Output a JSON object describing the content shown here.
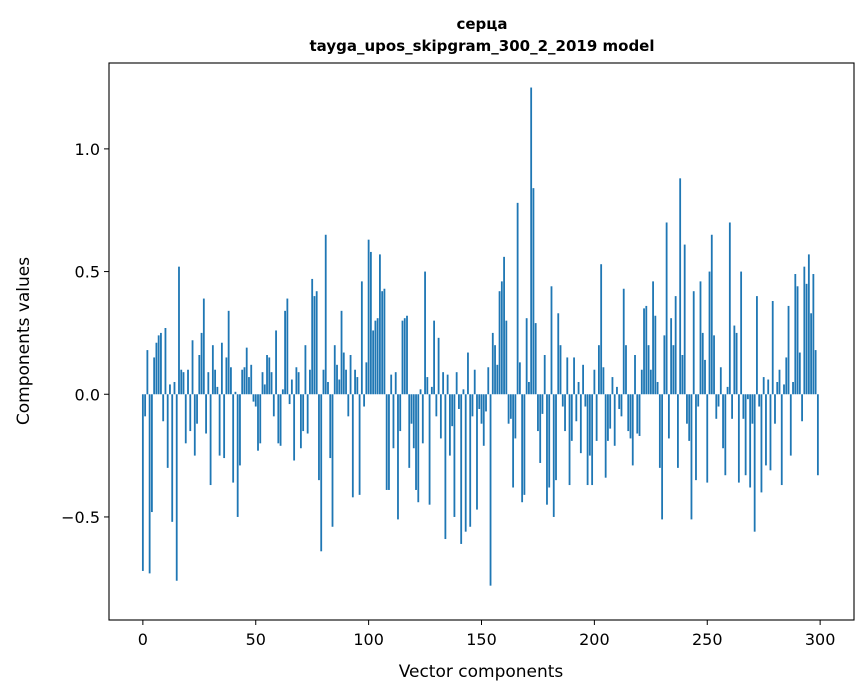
{
  "chart_data": {
    "type": "bar",
    "title_line1": "серца",
    "title_line2": "tayga_upos_skipgram_300_2_2019 model",
    "xlabel": "Vector components",
    "ylabel": "Components values",
    "xlim": [
      -15,
      315
    ],
    "ylim": [
      -0.92,
      1.35
    ],
    "x_ticks": [
      0,
      50,
      100,
      150,
      200,
      250,
      300
    ],
    "y_ticks": [
      -0.5,
      0.0,
      0.5,
      1.0
    ],
    "y_tick_labels": [
      "−0.5",
      "0.0",
      "0.5",
      "1.0"
    ],
    "bar_color": "#1f77b4",
    "grid": false,
    "values": [
      -0.72,
      -0.09,
      0.18,
      -0.73,
      -0.48,
      0.15,
      0.21,
      0.24,
      0.25,
      -0.11,
      0.27,
      -0.3,
      0.04,
      -0.52,
      0.05,
      -0.76,
      0.52,
      0.1,
      0.09,
      -0.2,
      0.1,
      -0.15,
      0.22,
      -0.25,
      -0.12,
      0.16,
      0.25,
      0.39,
      -0.16,
      0.09,
      -0.37,
      0.2,
      0.1,
      0.03,
      -0.25,
      0.21,
      -0.26,
      0.15,
      0.34,
      0.11,
      -0.36,
      0.01,
      -0.5,
      -0.29,
      0.1,
      0.11,
      0.19,
      0.07,
      0.12,
      -0.03,
      -0.05,
      -0.23,
      -0.2,
      0.09,
      0.04,
      0.16,
      0.15,
      0.09,
      -0.09,
      0.26,
      -0.2,
      -0.21,
      0.02,
      0.34,
      0.39,
      -0.04,
      0.06,
      -0.27,
      0.11,
      0.09,
      -0.22,
      -0.15,
      0.2,
      -0.16,
      0.1,
      0.47,
      0.4,
      0.42,
      -0.35,
      -0.64,
      0.1,
      0.65,
      0.05,
      -0.26,
      -0.54,
      0.2,
      0.12,
      0.06,
      0.34,
      0.17,
      0.1,
      -0.09,
      0.16,
      -0.42,
      0.1,
      0.07,
      -0.41,
      0.46,
      -0.05,
      0.13,
      0.63,
      0.58,
      0.26,
      0.3,
      0.31,
      0.57,
      0.42,
      0.43,
      -0.39,
      -0.39,
      0.08,
      -0.22,
      0.09,
      -0.51,
      -0.15,
      0.3,
      0.31,
      0.32,
      -0.3,
      -0.12,
      -0.22,
      -0.39,
      -0.44,
      0.02,
      -0.2,
      0.5,
      0.07,
      -0.45,
      0.03,
      0.3,
      -0.09,
      0.23,
      -0.18,
      0.09,
      -0.59,
      0.08,
      -0.25,
      -0.13,
      -0.5,
      0.09,
      -0.06,
      -0.61,
      0.02,
      -0.56,
      0.17,
      -0.54,
      -0.09,
      0.1,
      -0.47,
      -0.06,
      -0.12,
      -0.21,
      -0.07,
      0.11,
      -0.78,
      0.25,
      0.2,
      0.12,
      0.42,
      0.46,
      0.56,
      0.3,
      -0.12,
      -0.1,
      -0.38,
      -0.18,
      0.78,
      0.13,
      -0.44,
      -0.41,
      0.31,
      0.05,
      1.25,
      0.84,
      0.29,
      -0.15,
      -0.28,
      -0.08,
      0.16,
      -0.45,
      -0.38,
      0.44,
      -0.5,
      -0.35,
      0.33,
      0.2,
      -0.05,
      -0.15,
      0.15,
      -0.37,
      -0.19,
      0.15,
      -0.11,
      0.05,
      -0.24,
      0.12,
      -0.05,
      -0.37,
      -0.25,
      -0.37,
      0.1,
      -0.19,
      0.2,
      0.53,
      0.11,
      -0.34,
      -0.19,
      -0.14,
      0.07,
      -0.21,
      0.03,
      -0.06,
      -0.09,
      0.43,
      0.2,
      -0.15,
      -0.18,
      -0.29,
      0.16,
      -0.16,
      -0.17,
      0.1,
      0.35,
      0.36,
      0.2,
      0.1,
      0.46,
      0.32,
      0.05,
      -0.3,
      -0.51,
      0.24,
      0.7,
      -0.18,
      0.31,
      0.2,
      0.4,
      -0.3,
      0.88,
      0.16,
      0.61,
      -0.12,
      -0.19,
      -0.51,
      0.42,
      -0.35,
      -0.05,
      0.46,
      0.25,
      0.14,
      -0.36,
      0.5,
      0.65,
      0.24,
      -0.1,
      -0.05,
      0.11,
      -0.22,
      -0.33,
      0.03,
      0.7,
      -0.1,
      0.28,
      0.25,
      -0.36,
      0.5,
      -0.1,
      -0.33,
      -0.02,
      -0.38,
      -0.12,
      -0.56,
      0.4,
      -0.05,
      -0.4,
      0.07,
      -0.29,
      0.06,
      -0.31,
      0.38,
      -0.12,
      0.05,
      0.1,
      -0.37,
      0.04,
      0.15,
      0.36,
      -0.25,
      0.05,
      0.49,
      0.44,
      0.17,
      -0.11,
      0.52,
      0.45,
      0.57,
      0.33,
      0.49,
      0.18,
      -0.33
    ]
  }
}
